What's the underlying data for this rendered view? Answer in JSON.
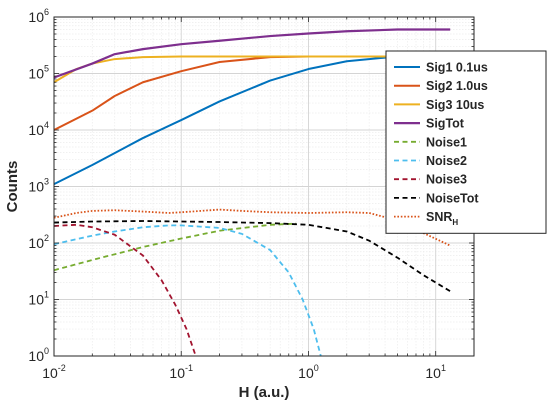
{
  "chart_data": {
    "type": "line",
    "title": "",
    "xlabel": "H (a.u.)",
    "ylabel": "Counts",
    "xscale": "log",
    "yscale": "log",
    "xlim": [
      0.01,
      20
    ],
    "ylim": [
      1,
      1000000
    ],
    "grid": true,
    "legend_position": "right",
    "x_ticks": [
      {
        "value": 0.01,
        "base": "10",
        "exp": "-2"
      },
      {
        "value": 0.1,
        "base": "10",
        "exp": "-1"
      },
      {
        "value": 1,
        "base": "10",
        "exp": "0"
      },
      {
        "value": 10,
        "base": "10",
        "exp": "1"
      }
    ],
    "y_ticks": [
      {
        "value": 1,
        "base": "10",
        "exp": "0"
      },
      {
        "value": 10,
        "base": "10",
        "exp": "1"
      },
      {
        "value": 100,
        "base": "10",
        "exp": "2"
      },
      {
        "value": 1000,
        "base": "10",
        "exp": "3"
      },
      {
        "value": 10000,
        "base": "10",
        "exp": "4"
      },
      {
        "value": 100000,
        "base": "10",
        "exp": "5"
      },
      {
        "value": 1000000,
        "base": "10",
        "exp": "6"
      }
    ],
    "series": [
      {
        "name": "Sig1 0.1us",
        "label_main": "Sig1 0.1us",
        "label_sub": "",
        "color": "#0072BD",
        "dash": "solid",
        "width": 2,
        "x": [
          0.01,
          0.02,
          0.05,
          0.1,
          0.2,
          0.5,
          1,
          2,
          5,
          13
        ],
        "y": [
          1100,
          2400,
          7200,
          15000,
          32000,
          75000,
          120000,
          165000,
          200000,
          200000
        ]
      },
      {
        "name": "Sig2 1.0us",
        "label_main": "Sig2 1.0us",
        "label_sub": "",
        "color": "#D95319",
        "dash": "solid",
        "width": 2,
        "x": [
          0.01,
          0.02,
          0.03,
          0.05,
          0.1,
          0.2,
          0.5,
          1,
          2,
          13
        ],
        "y": [
          10000,
          22000,
          40000,
          70000,
          110000,
          160000,
          195000,
          200000,
          200000,
          200000
        ]
      },
      {
        "name": "Sig3 10us",
        "label_main": "Sig3 10us",
        "label_sub": "",
        "color": "#EDB120",
        "dash": "solid",
        "width": 2,
        "x": [
          0.01,
          0.015,
          0.02,
          0.03,
          0.05,
          0.1,
          13
        ],
        "y": [
          70000,
          120000,
          150000,
          180000,
          195000,
          200000,
          200000
        ]
      },
      {
        "name": "SigTot",
        "label_main": "SigTot",
        "label_sub": "",
        "color": "#7E2F8E",
        "dash": "solid",
        "width": 2.2,
        "x": [
          0.01,
          0.02,
          0.03,
          0.05,
          0.1,
          0.2,
          0.5,
          1,
          2,
          5,
          13
        ],
        "y": [
          85000,
          150000,
          220000,
          270000,
          330000,
          380000,
          460000,
          510000,
          560000,
          600000,
          600000
        ]
      },
      {
        "name": "Noise1",
        "label_main": "Noise1",
        "label_sub": "",
        "color": "#77AC30",
        "dash": "dashed",
        "width": 1.8,
        "x": [
          0.01,
          0.02,
          0.05,
          0.1,
          0.2,
          0.5,
          0.8
        ],
        "y": [
          33,
          50,
          85,
          120,
          165,
          210,
          220
        ]
      },
      {
        "name": "Noise2",
        "label_main": "Noise2",
        "label_sub": "",
        "color": "#4DBEEE",
        "dash": "dashed",
        "width": 1.8,
        "x": [
          0.01,
          0.02,
          0.03,
          0.05,
          0.08,
          0.1,
          0.2,
          0.3,
          0.5,
          0.7,
          0.9,
          1.1,
          1.25
        ],
        "y": [
          95,
          135,
          160,
          190,
          205,
          205,
          185,
          145,
          75,
          30,
          10,
          3,
          1
        ]
      },
      {
        "name": "Noise3",
        "label_main": "Noise3",
        "label_sub": "",
        "color": "#A2142F",
        "dash": "dashed",
        "width": 1.8,
        "x": [
          0.01,
          0.015,
          0.02,
          0.03,
          0.05,
          0.07,
          0.09,
          0.11,
          0.13
        ],
        "y": [
          200,
          210,
          190,
          140,
          60,
          22,
          8,
          3,
          1
        ]
      },
      {
        "name": "NoiseTot",
        "label_main": "NoiseTot",
        "label_sub": "",
        "color": "#000000",
        "dash": "dashed",
        "width": 1.8,
        "x": [
          0.01,
          0.02,
          0.05,
          0.1,
          0.2,
          0.5,
          1,
          2,
          3,
          5,
          8,
          13
        ],
        "y": [
          230,
          240,
          245,
          240,
          235,
          225,
          210,
          160,
          110,
          55,
          27,
          14
        ]
      },
      {
        "name": "SNR_H",
        "label_main": "SNR",
        "label_sub": "H",
        "color": "#D95319",
        "dash": "dotted",
        "width": 1.8,
        "x": [
          0.01,
          0.015,
          0.02,
          0.03,
          0.05,
          0.08,
          0.1,
          0.2,
          0.3,
          0.5,
          1,
          2,
          3,
          5,
          8,
          13
        ],
        "y": [
          280,
          340,
          370,
          380,
          360,
          340,
          350,
          390,
          370,
          350,
          340,
          350,
          340,
          250,
          150,
          90
        ]
      }
    ]
  }
}
